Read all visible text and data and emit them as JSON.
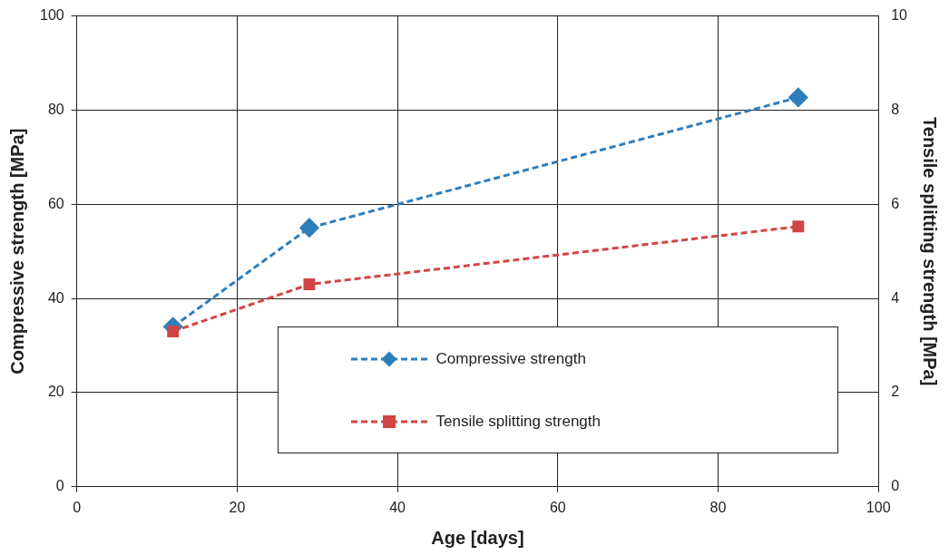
{
  "chart_data": {
    "type": "line",
    "xlabel": "Age [days]",
    "ylabel": "Compressive strength [MPa]",
    "y2label": "Tensile splitting strength [MPa]",
    "xlim": [
      0,
      100
    ],
    "xticks": [
      0,
      20,
      40,
      60,
      80,
      100
    ],
    "ylim": [
      0,
      100
    ],
    "yticks": [
      0,
      20,
      40,
      60,
      80,
      100
    ],
    "y2lim": [
      0,
      10
    ],
    "y2ticks": [
      0,
      2,
      4,
      6,
      8,
      10
    ],
    "grid": true,
    "legend": "bottom right",
    "line_style": "dashed",
    "series": [
      {
        "name": "Compressive strength",
        "color": "#2e7ebc",
        "marker": "diamond",
        "x": [
          12,
          29,
          90
        ],
        "values": [
          34,
          55,
          82.7
        ]
      },
      {
        "name": "Tensile splitting strength",
        "color": "#d34545",
        "marker": "square",
        "axis": "y2",
        "x": [
          12,
          29,
          90
        ],
        "values": [
          3.3,
          4.3,
          5.53
        ]
      }
    ]
  }
}
